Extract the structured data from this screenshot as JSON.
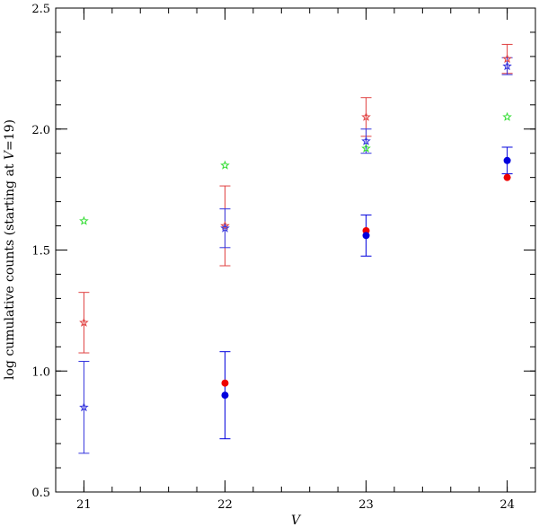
{
  "chart_data": {
    "type": "scatter",
    "title": "",
    "xlabel": "V",
    "ylabel_prefix": "log cumulative counts (starting at ",
    "ylabel_var": "V",
    "ylabel_suffix": "=19)",
    "xlim": [
      20.8,
      24.2
    ],
    "ylim": [
      0.5,
      2.5
    ],
    "x_ticks": [
      21,
      22,
      23,
      24
    ],
    "x_tick_labels": [
      "21",
      "22",
      "23",
      "24"
    ],
    "y_ticks": [
      0.5,
      1.0,
      1.5,
      2.0,
      2.5
    ],
    "y_tick_labels": [
      "0.5",
      "1.0",
      "1.5",
      "2.0",
      "2.5"
    ],
    "x_minor_step": 0.2,
    "y_minor_step": 0.1,
    "grid": false,
    "legend": "none",
    "series": [
      {
        "marker": "circle",
        "color": "#ee0000",
        "points": [
          {
            "x": 22,
            "y": 0.95
          },
          {
            "x": 23,
            "y": 1.58
          },
          {
            "x": 24,
            "y": 1.8
          }
        ]
      },
      {
        "marker": "circle",
        "color": "#0000dd",
        "points": [
          {
            "x": 22,
            "y": 0.9,
            "err": 0.18
          },
          {
            "x": 23,
            "y": 1.56,
            "err": 0.085
          },
          {
            "x": 24,
            "y": 1.87,
            "err": 0.055
          }
        ]
      },
      {
        "marker": "star",
        "color": "#e04040",
        "points": [
          {
            "x": 21,
            "y": 1.2,
            "err": 0.125
          },
          {
            "x": 22,
            "y": 1.6,
            "err": 0.165
          },
          {
            "x": 23,
            "y": 2.05,
            "err": 0.08
          },
          {
            "x": 24,
            "y": 2.29,
            "err": 0.06
          }
        ]
      },
      {
        "marker": "star",
        "color": "#3333dd",
        "points": [
          {
            "x": 21,
            "y": 0.85,
            "err": 0.19
          },
          {
            "x": 22,
            "y": 1.59,
            "err": 0.08
          },
          {
            "x": 23,
            "y": 1.95,
            "err": 0.05
          },
          {
            "x": 24,
            "y": 2.26,
            "err": 0.035
          }
        ]
      },
      {
        "marker": "star",
        "color": "#33dd33",
        "points": [
          {
            "x": 21,
            "y": 1.62
          },
          {
            "x": 22,
            "y": 1.85
          },
          {
            "x": 23,
            "y": 1.92
          },
          {
            "x": 24,
            "y": 2.05
          }
        ]
      }
    ]
  }
}
